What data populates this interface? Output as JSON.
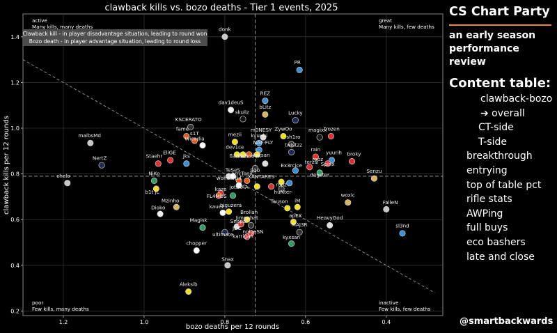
{
  "panel": {
    "brand": "CS Chart Party",
    "subtitle": "an early season performance review",
    "toc_title": "Content table:",
    "toc": [
      {
        "label": "clawback-bozo",
        "indent": 1
      },
      {
        "label": "➔ overall",
        "indent": 1
      },
      {
        "label": "CT-side",
        "indent": 2
      },
      {
        "label": "T-side",
        "indent": 2
      },
      {
        "label": "breakthrough",
        "indent": 0
      },
      {
        "label": "entrying",
        "indent": 0
      },
      {
        "label": "top of table pct",
        "indent": 0
      },
      {
        "label": "rifle stats",
        "indent": 0
      },
      {
        "label": "AWPing",
        "indent": 0
      },
      {
        "label": "full buys",
        "indent": 0
      },
      {
        "label": "eco bashers",
        "indent": 0
      },
      {
        "label": "late and close",
        "indent": 0
      }
    ],
    "handle": "@smartbackwards",
    "accent_color": "#f08a1c"
  },
  "chart_data": {
    "type": "scatter",
    "title": "clawback kills vs. bozo deaths - Tier 1 events, 2025",
    "xlabel": "bozo deaths per 12 rounds",
    "ylabel": "clawback kills per 12 rounds",
    "xlim": [
      1.3,
      0.26
    ],
    "ylim": [
      0.18,
      1.5
    ],
    "x_inverted": true,
    "xticks": [
      "1.2",
      "1.0",
      "0.8",
      "0.6",
      "0.4"
    ],
    "yticks": [
      "0.2",
      "0.4",
      "0.6",
      "0.8",
      "1.0",
      "1.2",
      "1.4"
    ],
    "grid": true,
    "reference_lines": {
      "x": 0.725,
      "y": 0.79
    },
    "trend_line": {
      "x": [
        1.3,
        0.28
      ],
      "y": [
        1.3,
        0.28
      ]
    },
    "info_box": {
      "line1": "Clawback kill - in player disadvantage situation, leading to round won",
      "line2": "Bozo death - in player advantage situation, leading to round loss"
    },
    "quadrants": [
      {
        "pos": "top-left",
        "title": "active",
        "desc": "Many kills, many deaths"
      },
      {
        "pos": "top-right",
        "title": "great",
        "desc": "Many kills, few deaths"
      },
      {
        "pos": "bottom-left",
        "title": "poor",
        "desc": "Few kills, many deaths"
      },
      {
        "pos": "bottom-right",
        "title": "inactive",
        "desc": "Few kills, few deaths"
      }
    ],
    "points": [
      {
        "name": "donk",
        "x": 0.8,
        "y": 1.4,
        "color": "#c8c8c8"
      },
      {
        "name": "PR",
        "x": 0.615,
        "y": 1.255,
        "color": "#3a8fd8"
      },
      {
        "name": "REZ",
        "x": 0.7,
        "y": 1.12,
        "color": "#3a8fd8"
      },
      {
        "name": "dav1deuS",
        "x": 0.785,
        "y": 1.08,
        "color": "#f0f0f0"
      },
      {
        "name": "bLitz",
        "x": 0.7,
        "y": 1.06,
        "color": "#d8b45a"
      },
      {
        "name": "skullz",
        "x": 0.755,
        "y": 1.04,
        "color": "#111111"
      },
      {
        "name": "Lucky",
        "x": 0.625,
        "y": 1.035,
        "color": "#1e2a5a"
      },
      {
        "name": "KSCERATO",
        "x": 0.885,
        "y": 1.005,
        "color": "#333333"
      },
      {
        "name": "magixx",
        "x": 0.565,
        "y": 0.96,
        "color": "#1a1a1a"
      },
      {
        "name": "frozen",
        "x": 0.537,
        "y": 0.965,
        "color": "#e03030"
      },
      {
        "name": "malbsMd",
        "x": 1.133,
        "y": 0.935,
        "color": "#c8c8c8"
      },
      {
        "name": "fame",
        "x": 0.895,
        "y": 0.965,
        "color": "#e05a20"
      },
      {
        "name": "s1T",
        "x": 0.875,
        "y": 0.945,
        "color": "#e05a20"
      },
      {
        "name": "Wicadia",
        "x": 0.855,
        "y": 0.925,
        "color": "#ffffff"
      },
      {
        "name": "mezii",
        "x": 0.775,
        "y": 0.94,
        "color": "#f0e020"
      },
      {
        "name": "m0NESY",
        "x": 0.705,
        "y": 0.96,
        "color": "#dddddd"
      },
      {
        "name": "ZywOo",
        "x": 0.655,
        "y": 0.965,
        "color": "#f0e020"
      },
      {
        "name": "sh1ro",
        "x": 0.635,
        "y": 0.93,
        "color": "#333333"
      },
      {
        "name": "kyuubi",
        "x": 0.715,
        "y": 0.935,
        "color": "#3a8fd8"
      },
      {
        "name": "NAF-FLY",
        "x": 0.715,
        "y": 0.905,
        "color": "#3a8fd8"
      },
      {
        "name": "dev1ce",
        "x": 0.77,
        "y": 0.885,
        "color": "#f0e020"
      },
      {
        "name": "flameZ",
        "x": 0.755,
        "y": 0.885,
        "color": "#f0e020"
      },
      {
        "name": "Techno4K",
        "x": 0.74,
        "y": 0.885,
        "color": "#e05a20"
      },
      {
        "name": "iM",
        "x": 0.72,
        "y": 0.885,
        "color": "#f0e020"
      },
      {
        "name": "twistzz",
        "x": 0.635,
        "y": 0.895,
        "color": "#1e2a5a"
      },
      {
        "name": "rain",
        "x": 0.575,
        "y": 0.875,
        "color": "#e03030"
      },
      {
        "name": "yuurih",
        "x": 0.535,
        "y": 0.86,
        "color": "#3a8fd8"
      },
      {
        "name": "Spinx",
        "x": 0.545,
        "y": 0.845,
        "color": "#e03030"
      },
      {
        "name": "broky",
        "x": 0.485,
        "y": 0.855,
        "color": "#e03030"
      },
      {
        "name": "NertZ",
        "x": 1.105,
        "y": 0.838,
        "color": "#1e2a5a"
      },
      {
        "name": "EliGE",
        "x": 0.935,
        "y": 0.86,
        "color": "#e03030"
      },
      {
        "name": "jks",
        "x": 0.895,
        "y": 0.845,
        "color": "#3a8fd8"
      },
      {
        "name": "Staehr",
        "x": 0.965,
        "y": 0.845,
        "color": "#e03030"
      },
      {
        "name": "XANTARES",
        "x": 0.7,
        "y": 0.845,
        "color": "#dddddd"
      },
      {
        "name": "910",
        "x": 0.725,
        "y": 0.825,
        "color": "#333333"
      },
      {
        "name": "Ex3rcice",
        "x": 0.625,
        "y": 0.815,
        "color": "#3a8fd8"
      },
      {
        "name": "torzsi",
        "x": 0.59,
        "y": 0.83,
        "color": "#e03030"
      },
      {
        "name": "degster",
        "x": 0.565,
        "y": 0.805,
        "color": "#2aa060"
      },
      {
        "name": "Senzu",
        "x": 0.43,
        "y": 0.78,
        "color": "#d8b45a"
      },
      {
        "name": "chelo",
        "x": 1.19,
        "y": 0.76,
        "color": "#c8c8c8"
      },
      {
        "name": "NiKo",
        "x": 0.975,
        "y": 0.77,
        "color": "#2aa060"
      },
      {
        "name": "b1t",
        "x": 0.79,
        "y": 0.79,
        "color": "#dddddd"
      },
      {
        "name": "TeSeS",
        "x": 0.78,
        "y": 0.79,
        "color": "#ffffff"
      },
      {
        "name": "jottAAA",
        "x": 0.765,
        "y": 0.77,
        "color": "#e05a20"
      },
      {
        "name": "ropz",
        "x": 0.66,
        "y": 0.765,
        "color": "#f0e020"
      },
      {
        "name": "wonderful",
        "x": 0.765,
        "y": 0.75,
        "color": "#ffffff"
      },
      {
        "name": "arrcToniC",
        "x": 0.745,
        "y": 0.77,
        "color": "#e05a20"
      },
      {
        "name": "bLiTz",
        "x": 0.64,
        "y": 0.76,
        "color": "#3a8fd8"
      },
      {
        "name": "b1t_jL",
        "x": 0.97,
        "y": 0.735,
        "color": "#f0e020"
      },
      {
        "name": "XANTARES_",
        "x": 0.72,
        "y": 0.745,
        "color": "#f0e020"
      },
      {
        "name": "siuhy",
        "x": 0.685,
        "y": 0.745,
        "color": "#e03030"
      },
      {
        "name": "huNter-",
        "x": 0.66,
        "y": 0.735,
        "color": "#333333"
      },
      {
        "name": "FL4MUS",
        "x": 0.81,
        "y": 0.715,
        "color": "#e03030"
      },
      {
        "name": "kaze",
        "x": 0.815,
        "y": 0.705,
        "color": "#e05a20"
      },
      {
        "name": "Jimpphat",
        "x": 0.78,
        "y": 0.705,
        "color": "#2aa060"
      },
      {
        "name": "woxic",
        "x": 0.495,
        "y": 0.675,
        "color": "#d8b45a"
      },
      {
        "name": "Tauson",
        "x": 0.645,
        "y": 0.65,
        "color": "#f0e020"
      },
      {
        "name": "iM_",
        "x": 0.62,
        "y": 0.655,
        "color": "#f0e020"
      },
      {
        "name": "FalleN",
        "x": 0.4,
        "y": 0.645,
        "color": "#c8c8c8"
      },
      {
        "name": "Mzinho",
        "x": 0.92,
        "y": 0.655,
        "color": "#d8b45a"
      },
      {
        "name": "kauez",
        "x": 0.805,
        "y": 0.63,
        "color": "#ffffff"
      },
      {
        "name": "biguzera",
        "x": 0.79,
        "y": 0.635,
        "color": "#f0e020"
      },
      {
        "name": "Dioko",
        "x": 0.96,
        "y": 0.625,
        "color": "#f0f0f0"
      },
      {
        "name": "Brollan",
        "x": 0.745,
        "y": 0.6,
        "color": "#f0e020"
      },
      {
        "name": "apEX",
        "x": 0.63,
        "y": 0.59,
        "color": "#f0e020"
      },
      {
        "name": "HeavyGod",
        "x": 0.54,
        "y": 0.575,
        "color": "#dddddd"
      },
      {
        "name": "Magisk",
        "x": 0.855,
        "y": 0.565,
        "color": "#2aa060"
      },
      {
        "name": "JDC",
        "x": 0.77,
        "y": 0.57,
        "color": "#dddddd"
      },
      {
        "name": "Snappi",
        "x": 0.76,
        "y": 0.58,
        "color": "#e03030"
      },
      {
        "name": "jambo",
        "x": 0.735,
        "y": 0.575,
        "color": "#333333"
      },
      {
        "name": "MAJ3R",
        "x": 0.615,
        "y": 0.545,
        "color": "#333333"
      },
      {
        "name": "sl3nd",
        "x": 0.36,
        "y": 0.54,
        "color": "#3a8fd8"
      },
      {
        "name": "ultimate",
        "x": 0.8,
        "y": 0.545,
        "color": "#1e2a5a"
      },
      {
        "name": "nolgeSN",
        "x": 0.735,
        "y": 0.54,
        "color": "#e03030"
      },
      {
        "name": "karrigan",
        "x": 0.745,
        "y": 0.525,
        "color": "#e03030"
      },
      {
        "name": "kyxsan",
        "x": 0.635,
        "y": 0.495,
        "color": "#2aa060"
      },
      {
        "name": "chopper",
        "x": 0.87,
        "y": 0.465,
        "color": "#ffffff"
      },
      {
        "name": "Snax",
        "x": 0.793,
        "y": 0.4,
        "color": "#c8c8c8"
      },
      {
        "name": "Aleksib",
        "x": 0.89,
        "y": 0.285,
        "color": "#f0e020"
      }
    ],
    "labels": [
      {
        "text": "donk",
        "x": 0.8,
        "y": 1.425
      },
      {
        "text": "PR",
        "x": 0.62,
        "y": 1.28
      },
      {
        "text": "REZ",
        "x": 0.7,
        "y": 1.145
      },
      {
        "text": "dav1deuS",
        "x": 0.785,
        "y": 1.105
      },
      {
        "text": "bLitz",
        "x": 0.7,
        "y": 1.085
      },
      {
        "text": "skullz",
        "x": 0.757,
        "y": 1.062
      },
      {
        "text": "Lucky",
        "x": 0.625,
        "y": 1.06
      },
      {
        "text": "KSCERATO",
        "x": 0.89,
        "y": 1.03
      },
      {
        "text": "magixx",
        "x": 0.57,
        "y": 0.985
      },
      {
        "text": "frozen",
        "x": 0.535,
        "y": 0.99
      },
      {
        "text": "malbsMd",
        "x": 1.135,
        "y": 0.96
      },
      {
        "text": "fame",
        "x": 0.905,
        "y": 0.99
      },
      {
        "text": "s1T",
        "x": 0.875,
        "y": 0.97
      },
      {
        "text": "Wicadia",
        "x": 0.875,
        "y": 0.947
      },
      {
        "text": "mezii",
        "x": 0.775,
        "y": 0.965
      },
      {
        "text": "m0NESY",
        "x": 0.71,
        "y": 0.985
      },
      {
        "text": "ZywOo",
        "x": 0.655,
        "y": 0.99
      },
      {
        "text": "kyuubi",
        "x": 0.715,
        "y": 0.96
      },
      {
        "text": "sh1ro",
        "x": 0.63,
        "y": 0.955
      },
      {
        "text": "NAF-FLY",
        "x": 0.705,
        "y": 0.93
      },
      {
        "text": "dev1ce",
        "x": 0.775,
        "y": 0.91
      },
      {
        "text": "twistzz",
        "x": 0.63,
        "y": 0.92
      },
      {
        "text": "rain",
        "x": 0.575,
        "y": 0.9
      },
      {
        "text": "yuurih",
        "x": 0.53,
        "y": 0.885
      },
      {
        "text": "broky",
        "x": 0.48,
        "y": 0.88
      },
      {
        "text": "flameZ",
        "x": 0.767,
        "y": 0.87
      },
      {
        "text": "Techno4K",
        "x": 0.74,
        "y": 0.87
      },
      {
        "text": "ropz",
        "x": 0.57,
        "y": 0.857
      },
      {
        "text": "Spinx",
        "x": 0.545,
        "y": 0.835
      },
      {
        "text": "NertZ",
        "x": 1.11,
        "y": 0.862
      },
      {
        "text": "EliGE",
        "x": 0.937,
        "y": 0.885
      },
      {
        "text": "jks",
        "x": 0.895,
        "y": 0.87
      },
      {
        "text": "Staehr",
        "x": 0.975,
        "y": 0.87
      },
      {
        "text": "kyxsan",
        "x": 0.71,
        "y": 0.875
      },
      {
        "text": "910",
        "x": 0.725,
        "y": 0.808
      },
      {
        "text": "Ex3rcice",
        "x": 0.635,
        "y": 0.83
      },
      {
        "text": "torzsi",
        "x": 0.585,
        "y": 0.845
      },
      {
        "text": "degster",
        "x": 0.565,
        "y": 0.788
      },
      {
        "text": "Senzu",
        "x": 0.43,
        "y": 0.805
      },
      {
        "text": "chelo",
        "x": 1.2,
        "y": 0.783
      },
      {
        "text": "NiKo",
        "x": 0.975,
        "y": 0.795
      },
      {
        "text": "TeSeS",
        "x": 0.78,
        "y": 0.81
      },
      {
        "text": "arrcToniC",
        "x": 0.755,
        "y": 0.795
      },
      {
        "text": "XANTARES",
        "x": 0.71,
        "y": 0.78
      },
      {
        "text": "wonderful",
        "x": 0.79,
        "y": 0.775
      },
      {
        "text": "jottAAA",
        "x": 0.765,
        "y": 0.735
      },
      {
        "text": "ropz",
        "x": 0.66,
        "y": 0.745
      },
      {
        "text": "b1t jL",
        "x": 0.98,
        "y": 0.713
      },
      {
        "text": "huNter-",
        "x": 0.655,
        "y": 0.713
      },
      {
        "text": "FL4MUS",
        "x": 0.82,
        "y": 0.695
      },
      {
        "text": "kaze",
        "x": 0.81,
        "y": 0.725
      },
      {
        "text": "woxic",
        "x": 0.495,
        "y": 0.7
      },
      {
        "text": "Tauson",
        "x": 0.665,
        "y": 0.672
      },
      {
        "text": "iM",
        "x": 0.62,
        "y": 0.675
      },
      {
        "text": "FalleN",
        "x": 0.39,
        "y": 0.668
      },
      {
        "text": "Mzinho",
        "x": 0.935,
        "y": 0.675
      },
      {
        "text": "kauez",
        "x": 0.82,
        "y": 0.65
      },
      {
        "text": "biguzera",
        "x": 0.785,
        "y": 0.655
      },
      {
        "text": "Dioko",
        "x": 0.965,
        "y": 0.645
      },
      {
        "text": "Brollan",
        "x": 0.74,
        "y": 0.625
      },
      {
        "text": "apEX",
        "x": 0.625,
        "y": 0.61
      },
      {
        "text": "HeavyGod",
        "x": 0.54,
        "y": 0.6
      },
      {
        "text": "Magisk",
        "x": 0.865,
        "y": 0.59
      },
      {
        "text": "Snappi",
        "x": 0.765,
        "y": 0.585
      },
      {
        "text": "Jimpphat",
        "x": 0.745,
        "y": 0.6
      },
      {
        "text": "MAJ3R",
        "x": 0.615,
        "y": 0.57
      },
      {
        "text": "sl3nd",
        "x": 0.36,
        "y": 0.565
      },
      {
        "text": "JDC",
        "x": 0.77,
        "y": 0.555
      },
      {
        "text": "ultimate",
        "x": 0.805,
        "y": 0.527
      },
      {
        "text": "nolgeSN",
        "x": 0.73,
        "y": 0.54
      },
      {
        "text": "karrigan",
        "x": 0.755,
        "y": 0.52
      },
      {
        "text": "kyxsan",
        "x": 0.635,
        "y": 0.515
      },
      {
        "text": "chopper",
        "x": 0.87,
        "y": 0.49
      },
      {
        "text": "Snax",
        "x": 0.793,
        "y": 0.42
      },
      {
        "text": "Aleksib",
        "x": 0.89,
        "y": 0.31
      }
    ]
  }
}
